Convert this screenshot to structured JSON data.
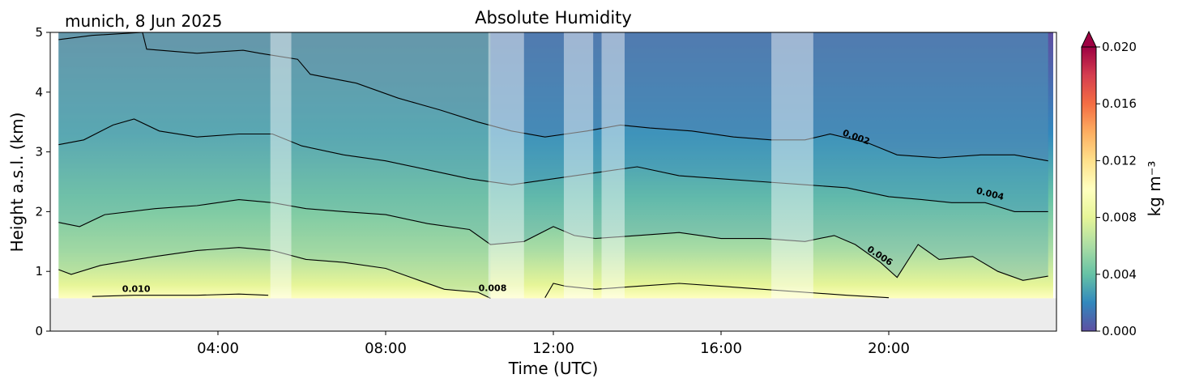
{
  "header": {
    "location_date": "munich, 8 Jun 2025"
  },
  "colors": {
    "missing_band": "#ececec",
    "contour_line": "#000000",
    "gap_overlay": "rgba(255,255,255,0.45)",
    "colormap": [
      "#5e4fa2",
      "#3288bd",
      "#66c2a5",
      "#abdda4",
      "#e6f598",
      "#ffffbf",
      "#fee08b",
      "#fdae61",
      "#f46d43",
      "#d53e4f",
      "#9e0142"
    ]
  },
  "chart_data": {
    "type": "heatmap",
    "title": "Absolute Humidity",
    "xlabel": "Time (UTC)",
    "ylabel": "Height a.s.l. (km)",
    "xlim": [
      0,
      24
    ],
    "ylim": [
      0,
      5
    ],
    "x_ticks": [
      {
        "value": 4,
        "label": "04:00"
      },
      {
        "value": 8,
        "label": "08:00"
      },
      {
        "value": 12,
        "label": "12:00"
      },
      {
        "value": 16,
        "label": "16:00"
      },
      {
        "value": 20,
        "label": "20:00"
      }
    ],
    "y_ticks": [
      {
        "value": 0,
        "label": "0"
      },
      {
        "value": 1,
        "label": "1"
      },
      {
        "value": 2,
        "label": "2"
      },
      {
        "value": 3,
        "label": "3"
      },
      {
        "value": 4,
        "label": "4"
      },
      {
        "value": 5,
        "label": "5"
      }
    ],
    "data_min_height_km": 0.55,
    "gaps_utc": [
      [
        5.25,
        5.75
      ],
      [
        10.45,
        11.3
      ],
      [
        12.25,
        12.95
      ],
      [
        13.15,
        13.7
      ],
      [
        17.2,
        18.2
      ]
    ],
    "colorbar": {
      "label": "kg m⁻³",
      "range": [
        0,
        0.02
      ],
      "extend": "max",
      "ticks": [
        {
          "value": 0.0,
          "label": "0.000"
        },
        {
          "value": 0.004,
          "label": "0.004"
        },
        {
          "value": 0.008,
          "label": "0.008"
        },
        {
          "value": 0.012,
          "label": "0.012"
        },
        {
          "value": 0.016,
          "label": "0.016"
        },
        {
          "value": 0.02,
          "label": "0.020"
        }
      ]
    },
    "contours": [
      {
        "level": 0.002,
        "label": "0.002",
        "label_at": [
          19.2,
          3.2
        ],
        "label_angle": 20,
        "points": [
          [
            0.2,
            4.88
          ],
          [
            1,
            4.95
          ],
          [
            2.2,
            5.0
          ],
          [
            2.3,
            4.72
          ],
          [
            3.5,
            4.65
          ],
          [
            4.6,
            4.7
          ],
          [
            5.0,
            4.65
          ],
          [
            5.9,
            4.55
          ],
          [
            6.2,
            4.3
          ],
          [
            7.3,
            4.15
          ],
          [
            8.3,
            3.9
          ],
          [
            9.3,
            3.7
          ],
          [
            10.2,
            3.5
          ],
          [
            11.0,
            3.35
          ],
          [
            11.8,
            3.25
          ],
          [
            12.3,
            3.3
          ],
          [
            12.8,
            3.35
          ],
          [
            13.6,
            3.45
          ],
          [
            14.3,
            3.4
          ],
          [
            15.3,
            3.35
          ],
          [
            16.3,
            3.25
          ],
          [
            17.2,
            3.2
          ],
          [
            18.0,
            3.2
          ],
          [
            18.6,
            3.3
          ],
          [
            19.5,
            3.15
          ],
          [
            20.2,
            2.95
          ],
          [
            21.2,
            2.9
          ],
          [
            22.2,
            2.95
          ],
          [
            23.0,
            2.95
          ],
          [
            23.8,
            2.85
          ]
        ]
      },
      {
        "level": 0.003,
        "label": "",
        "points": [
          [
            0.2,
            3.12
          ],
          [
            0.8,
            3.2
          ],
          [
            1.5,
            3.45
          ],
          [
            2.0,
            3.55
          ],
          [
            2.6,
            3.35
          ],
          [
            3.5,
            3.25
          ],
          [
            4.5,
            3.3
          ],
          [
            5.3,
            3.3
          ],
          [
            6.0,
            3.1
          ],
          [
            7.0,
            2.95
          ],
          [
            8.0,
            2.85
          ],
          [
            9.0,
            2.7
          ],
          [
            10.0,
            2.55
          ],
          [
            11.0,
            2.45
          ],
          [
            12.0,
            2.55
          ],
          [
            13.0,
            2.65
          ],
          [
            14.0,
            2.75
          ],
          [
            15.0,
            2.6
          ],
          [
            16.0,
            2.55
          ],
          [
            17.0,
            2.5
          ],
          [
            18.0,
            2.45
          ],
          [
            19.0,
            2.4
          ],
          [
            20.0,
            2.25
          ],
          [
            20.8,
            2.2
          ],
          [
            21.5,
            2.15
          ],
          [
            22.3,
            2.15
          ],
          [
            23.0,
            2.0
          ],
          [
            23.8,
            2.0
          ]
        ]
      },
      {
        "level": 0.004,
        "label": "0.004",
        "label_at": [
          22.4,
          2.25
        ],
        "label_angle": 14,
        "points": [
          [
            0.2,
            1.82
          ],
          [
            0.7,
            1.75
          ],
          [
            1.3,
            1.95
          ],
          [
            2.5,
            2.05
          ],
          [
            3.5,
            2.1
          ],
          [
            4.5,
            2.2
          ],
          [
            5.3,
            2.15
          ],
          [
            6.1,
            2.05
          ],
          [
            7.0,
            2.0
          ],
          [
            8.0,
            1.95
          ],
          [
            9.0,
            1.8
          ],
          [
            10.0,
            1.7
          ],
          [
            10.5,
            1.45
          ],
          [
            11.3,
            1.5
          ],
          [
            12.0,
            1.75
          ],
          [
            12.5,
            1.6
          ],
          [
            13.0,
            1.55
          ],
          [
            14.0,
            1.6
          ],
          [
            15.0,
            1.65
          ],
          [
            16.0,
            1.55
          ],
          [
            17.0,
            1.55
          ],
          [
            18.0,
            1.5
          ],
          [
            18.7,
            1.6
          ],
          [
            19.2,
            1.45
          ],
          [
            19.8,
            1.15
          ],
          [
            20.2,
            0.9
          ],
          [
            20.7,
            1.45
          ],
          [
            21.2,
            1.2
          ],
          [
            22.0,
            1.25
          ],
          [
            22.6,
            1.0
          ],
          [
            23.2,
            0.85
          ],
          [
            23.8,
            0.92
          ]
        ]
      },
      {
        "level": 0.006,
        "label": "0.006",
        "label_at": [
          19.75,
          1.22
        ],
        "label_angle": 33,
        "points": [
          [
            0.2,
            1.03
          ],
          [
            0.5,
            0.95
          ],
          [
            1.2,
            1.1
          ],
          [
            2.5,
            1.25
          ],
          [
            3.5,
            1.35
          ],
          [
            4.5,
            1.4
          ],
          [
            5.3,
            1.35
          ],
          [
            6.1,
            1.2
          ],
          [
            7.0,
            1.15
          ],
          [
            8.0,
            1.05
          ],
          [
            8.8,
            0.85
          ],
          [
            9.4,
            0.7
          ],
          [
            10.2,
            0.65
          ],
          [
            10.5,
            0.55
          ]
        ]
      },
      {
        "level": 0.01,
        "label": "0.010",
        "label_at": [
          2.05,
          0.66
        ],
        "label_angle": 0,
        "points": [
          [
            1.0,
            0.58
          ],
          [
            2.0,
            0.6
          ],
          [
            3.5,
            0.6
          ],
          [
            4.5,
            0.62
          ],
          [
            5.2,
            0.6
          ]
        ]
      },
      {
        "level": 0.008,
        "label": "0.008",
        "label_at": [
          10.55,
          0.67
        ],
        "label_angle": 0,
        "points": [
          [
            11.8,
            0.56
          ],
          [
            12.0,
            0.8
          ],
          [
            12.3,
            0.75
          ],
          [
            13.0,
            0.7
          ],
          [
            14.0,
            0.75
          ],
          [
            15.0,
            0.8
          ],
          [
            16.0,
            0.75
          ],
          [
            17.0,
            0.7
          ],
          [
            18.0,
            0.65
          ],
          [
            19.0,
            0.6
          ],
          [
            20.0,
            0.56
          ]
        ]
      }
    ]
  }
}
